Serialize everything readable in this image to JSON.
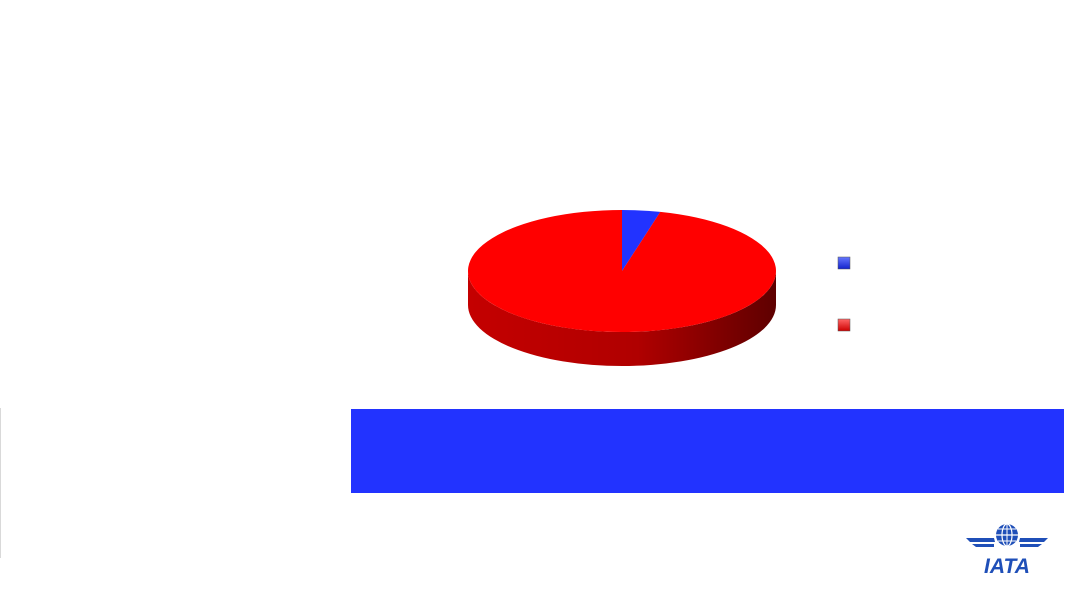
{
  "chart_data": {
    "type": "pie",
    "style": "3d",
    "slices": [
      {
        "label": "",
        "value": 4,
        "color": "#2233ff"
      },
      {
        "label": "",
        "value": 96,
        "color": "#ff0000"
      }
    ],
    "legend": {
      "placement": "right"
    }
  },
  "banner": {
    "text": "",
    "color": "#2233ff"
  },
  "logo": {
    "text": "IATA",
    "icon": "globe-wings-icon",
    "color": "#1f4fb8"
  }
}
